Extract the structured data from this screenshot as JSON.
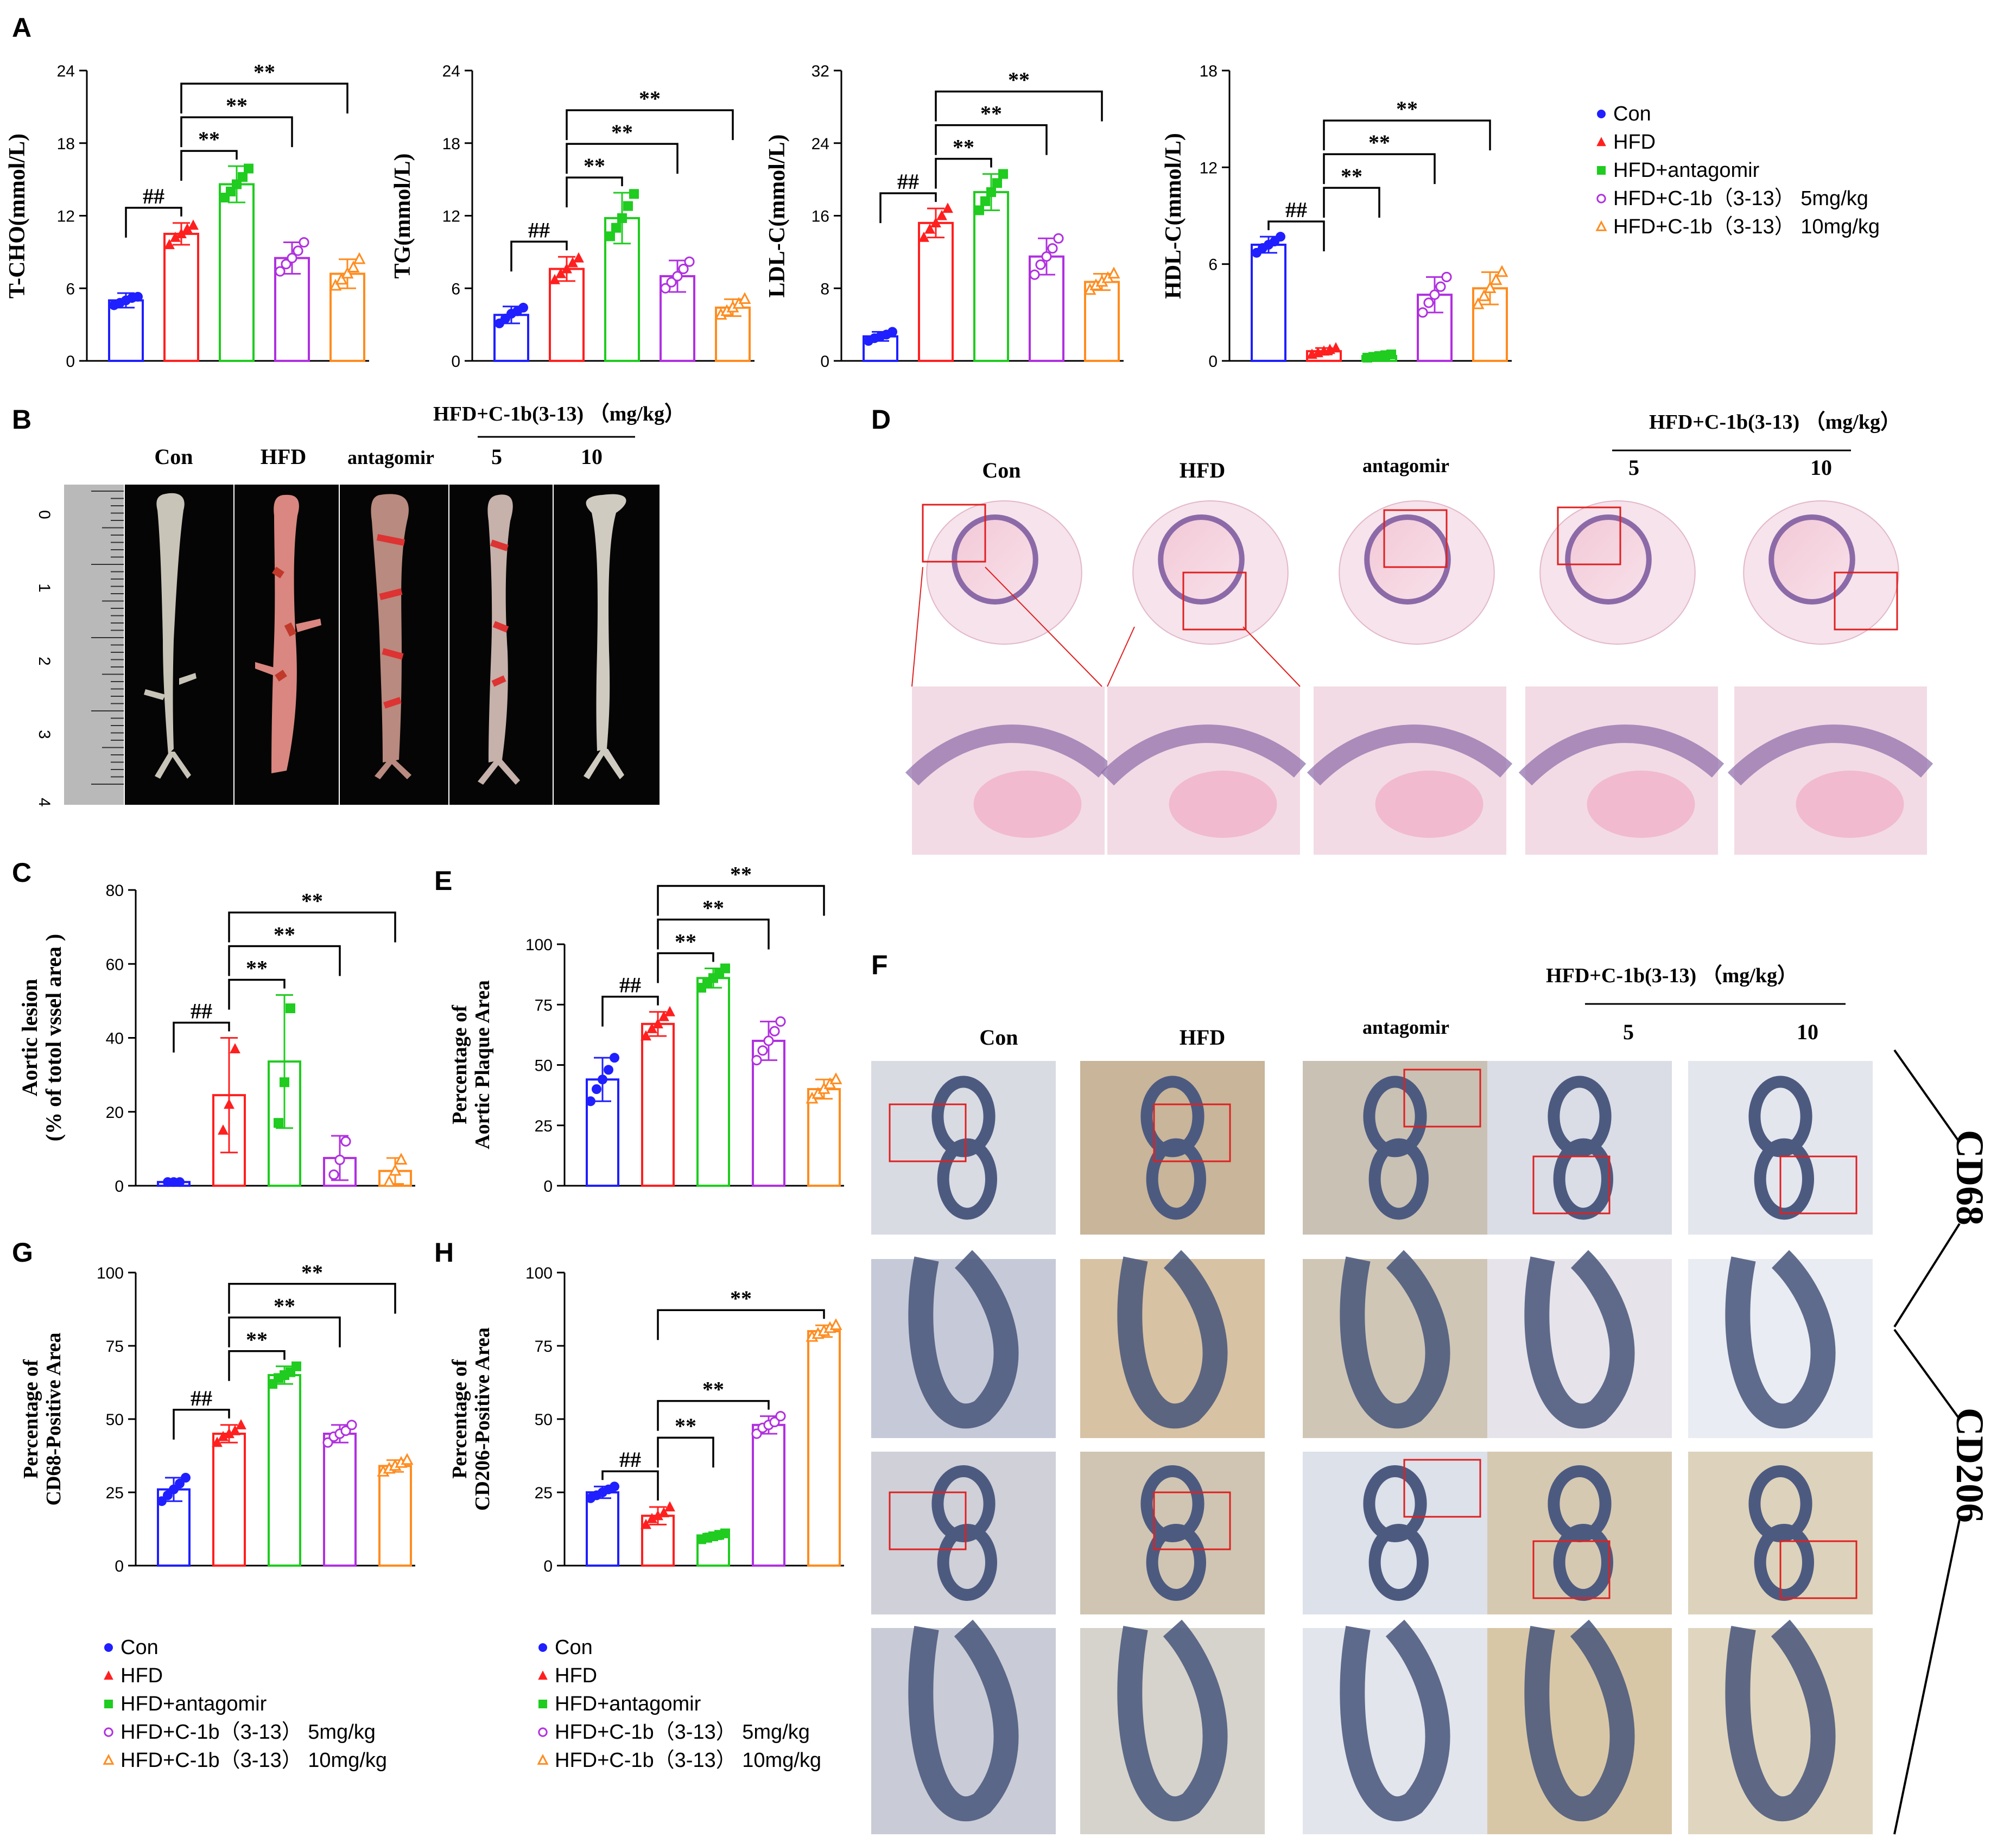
{
  "panel_letters": {
    "a": "A",
    "b": "B",
    "c": "C",
    "d": "D",
    "e": "E",
    "f": "F",
    "g": "G",
    "h": "H"
  },
  "colors": {
    "con": "#1f1fff",
    "hfd": "#ff1f1f",
    "antagomir": "#1fcc1f",
    "low": "#b030e0",
    "high": "#ff8c1f"
  },
  "legend": [
    "Con",
    "HFD",
    "HFD+antagomir",
    "HFD+C-1b（3-13） 5mg/kg",
    "HFD+C-1b（3-13） 10mg/kg"
  ],
  "sig": {
    "hash": "##",
    "star": "**"
  },
  "photo_labels": {
    "b_header": "HFD+C-1b(3-13) （mg/kg）",
    "con": "Con",
    "hfd": "HFD",
    "antagomir": "antagomir",
    "dose5": "5",
    "dose10": "10",
    "ruler": [
      "0",
      "1",
      "2",
      "3",
      "4"
    ],
    "cd68": "CD68",
    "cd206": "CD206"
  },
  "chart_data": [
    {
      "id": "A1",
      "type": "bar",
      "ylabel": "T-CHO(mmol/L)",
      "ylim": [
        0,
        24
      ],
      "yticks": [
        "0",
        "6",
        "12",
        "18",
        "24"
      ],
      "values": [
        5,
        10.5,
        14.6,
        8.5,
        7.2
      ],
      "errors": [
        0.6,
        0.9,
        1.5,
        1.3,
        1.2
      ],
      "points": [
        [
          4.6,
          4.8,
          5.0,
          5.2,
          5.3
        ],
        [
          9.6,
          10.2,
          10.5,
          10.9,
          11.2
        ],
        [
          13.5,
          14.0,
          14.6,
          15.2,
          15.9
        ],
        [
          7.4,
          8.0,
          8.5,
          9.1,
          9.8
        ],
        [
          6.2,
          6.7,
          7.2,
          7.7,
          8.4
        ]
      ],
      "brackets": [
        {
          "a": 0,
          "b": 1,
          "label": "##"
        },
        {
          "a": 1,
          "b": 2,
          "label": "**"
        },
        {
          "a": 1,
          "b": 3,
          "label": "**"
        },
        {
          "a": 1,
          "b": 4,
          "label": "**"
        }
      ]
    },
    {
      "id": "A2",
      "type": "bar",
      "ylabel": "TG(mmol/L)",
      "ylim": [
        0,
        24
      ],
      "yticks": [
        "0",
        "6",
        "12",
        "18",
        "24"
      ],
      "values": [
        3.8,
        7.6,
        11.8,
        7.0,
        4.4
      ],
      "errors": [
        0.7,
        1.0,
        2.1,
        1.3,
        0.7
      ],
      "points": [
        [
          3.1,
          3.5,
          3.9,
          4.1,
          4.4
        ],
        [
          6.7,
          7.2,
          7.6,
          8.1,
          8.5
        ],
        [
          10.3,
          11.0,
          11.8,
          12.8,
          13.8
        ],
        [
          6.0,
          6.5,
          7.0,
          7.6,
          8.2
        ],
        [
          3.8,
          4.1,
          4.4,
          4.7,
          5.1
        ]
      ],
      "brackets": [
        {
          "a": 0,
          "b": 1,
          "label": "##"
        },
        {
          "a": 1,
          "b": 2,
          "label": "**"
        },
        {
          "a": 1,
          "b": 3,
          "label": "**"
        },
        {
          "a": 1,
          "b": 4,
          "label": "**"
        }
      ]
    },
    {
      "id": "A3",
      "type": "bar",
      "ylabel": "LDL-C(mmol/L)",
      "ylim": [
        0,
        32
      ],
      "yticks": [
        "0",
        "8",
        "16",
        "24",
        "32"
      ],
      "values": [
        2.7,
        15.2,
        18.6,
        11.5,
        8.7
      ],
      "errors": [
        0.5,
        1.6,
        2.0,
        2.0,
        0.9
      ],
      "points": [
        [
          2.2,
          2.5,
          2.7,
          2.9,
          3.2
        ],
        [
          13.6,
          14.5,
          15.2,
          16.0,
          16.8
        ],
        [
          16.6,
          17.6,
          18.6,
          19.6,
          20.6
        ],
        [
          9.5,
          10.6,
          11.5,
          12.4,
          13.5
        ],
        [
          7.8,
          8.3,
          8.7,
          9.1,
          9.6
        ]
      ],
      "brackets": [
        {
          "a": 0,
          "b": 1,
          "label": "##"
        },
        {
          "a": 1,
          "b": 2,
          "label": "**"
        },
        {
          "a": 1,
          "b": 3,
          "label": "**"
        },
        {
          "a": 1,
          "b": 4,
          "label": "**"
        }
      ]
    },
    {
      "id": "A4",
      "type": "bar",
      "ylabel": "HDL-C(mmol/L)",
      "ylim": [
        0,
        18
      ],
      "yticks": [
        "0",
        "6",
        "12",
        "18"
      ],
      "values": [
        7.2,
        0.6,
        0.3,
        4.1,
        4.5
      ],
      "errors": [
        0.5,
        0.2,
        0.1,
        1.1,
        1.0
      ],
      "points": [
        [
          6.7,
          7.0,
          7.2,
          7.4,
          7.7
        ],
        [
          0.4,
          0.5,
          0.6,
          0.7,
          0.8
        ],
        [
          0.2,
          0.25,
          0.3,
          0.35,
          0.4
        ],
        [
          3.0,
          3.6,
          4.1,
          4.6,
          5.2
        ],
        [
          3.5,
          4.0,
          4.5,
          5.0,
          5.5
        ]
      ],
      "brackets": [
        {
          "a": 0,
          "b": 1,
          "label": "##"
        },
        {
          "a": 1,
          "b": 2,
          "label": "**"
        },
        {
          "a": 1,
          "b": 3,
          "label": "**"
        },
        {
          "a": 1,
          "b": 4,
          "label": "**"
        }
      ]
    },
    {
      "id": "C",
      "type": "bar",
      "ylabel": [
        "Aortic lesion",
        "(% of totol vssel area )"
      ],
      "ylim": [
        0,
        80
      ],
      "yticks": [
        "0",
        "20",
        "40",
        "60",
        "80"
      ],
      "values": [
        1,
        24.5,
        33.6,
        7.5,
        4.0
      ],
      "errors": [
        0.3,
        15.5,
        18.0,
        6.0,
        3.5
      ],
      "points": [
        [
          1,
          1,
          1
        ],
        [
          15,
          22,
          37
        ],
        [
          17,
          28,
          48
        ],
        [
          3,
          7,
          12
        ],
        [
          1,
          4,
          7
        ]
      ],
      "brackets": [
        {
          "a": 0,
          "b": 1,
          "label": "##"
        },
        {
          "a": 1,
          "b": 2,
          "label": "**"
        },
        {
          "a": 1,
          "b": 3,
          "label": "**"
        },
        {
          "a": 1,
          "b": 4,
          "label": "**"
        }
      ]
    },
    {
      "id": "E",
      "type": "bar",
      "ylabel": [
        "Percentage of",
        "Aortic Plaque Area"
      ],
      "ylim": [
        0,
        100
      ],
      "yticks": [
        "0",
        "25",
        "50",
        "75",
        "100"
      ],
      "values": [
        44,
        67,
        86,
        60,
        40
      ],
      "errors": [
        9,
        5,
        4,
        8,
        4
      ],
      "points": [
        [
          35,
          40,
          44,
          48,
          53
        ],
        [
          62,
          65,
          67,
          70,
          72
        ],
        [
          82,
          84,
          86,
          88,
          90
        ],
        [
          52,
          56,
          60,
          64,
          68
        ],
        [
          36,
          38,
          40,
          42,
          44
        ]
      ],
      "brackets": [
        {
          "a": 0,
          "b": 1,
          "label": "##"
        },
        {
          "a": 1,
          "b": 2,
          "label": "**"
        },
        {
          "a": 1,
          "b": 3,
          "label": "**"
        },
        {
          "a": 1,
          "b": 4,
          "label": "**"
        }
      ]
    },
    {
      "id": "G",
      "type": "bar",
      "ylabel": [
        "Percentage of",
        "CD68-Positive Area"
      ],
      "ylim": [
        0,
        100
      ],
      "yticks": [
        "0",
        "25",
        "50",
        "75",
        "100"
      ],
      "values": [
        26,
        45,
        65,
        45,
        34
      ],
      "errors": [
        4,
        3,
        3,
        3,
        2
      ],
      "points": [
        [
          22,
          24,
          26,
          28,
          30
        ],
        [
          42,
          44,
          45,
          46,
          48
        ],
        [
          62,
          64,
          65,
          66,
          68
        ],
        [
          42,
          44,
          45,
          46,
          48
        ],
        [
          32,
          33,
          34,
          35,
          36
        ]
      ],
      "brackets": [
        {
          "a": 0,
          "b": 1,
          "label": "##"
        },
        {
          "a": 1,
          "b": 2,
          "label": "**"
        },
        {
          "a": 1,
          "b": 3,
          "label": "**"
        },
        {
          "a": 1,
          "b": 4,
          "label": "**"
        }
      ]
    },
    {
      "id": "H",
      "type": "bar",
      "ylabel": [
        "Percentage of",
        "CD206-Positive Area"
      ],
      "ylim": [
        0,
        100
      ],
      "yticks": [
        "0",
        "25",
        "50",
        "75",
        "100"
      ],
      "values": [
        25,
        17,
        10,
        48,
        80
      ],
      "errors": [
        2,
        3,
        1,
        3,
        2
      ],
      "points": [
        [
          23,
          24,
          25,
          26,
          27
        ],
        [
          14,
          16,
          17,
          18,
          20
        ],
        [
          9,
          9.5,
          10,
          10.5,
          11
        ],
        [
          45,
          47,
          48,
          49,
          51
        ],
        [
          78,
          79,
          80,
          81,
          82
        ]
      ],
      "brackets": [
        {
          "a": 0,
          "b": 1,
          "label": "##"
        },
        {
          "a": 1,
          "b": 2,
          "label": "**"
        },
        {
          "a": 1,
          "b": 3,
          "label": "**"
        },
        {
          "a": 1,
          "b": 4,
          "label": "**"
        }
      ]
    }
  ]
}
